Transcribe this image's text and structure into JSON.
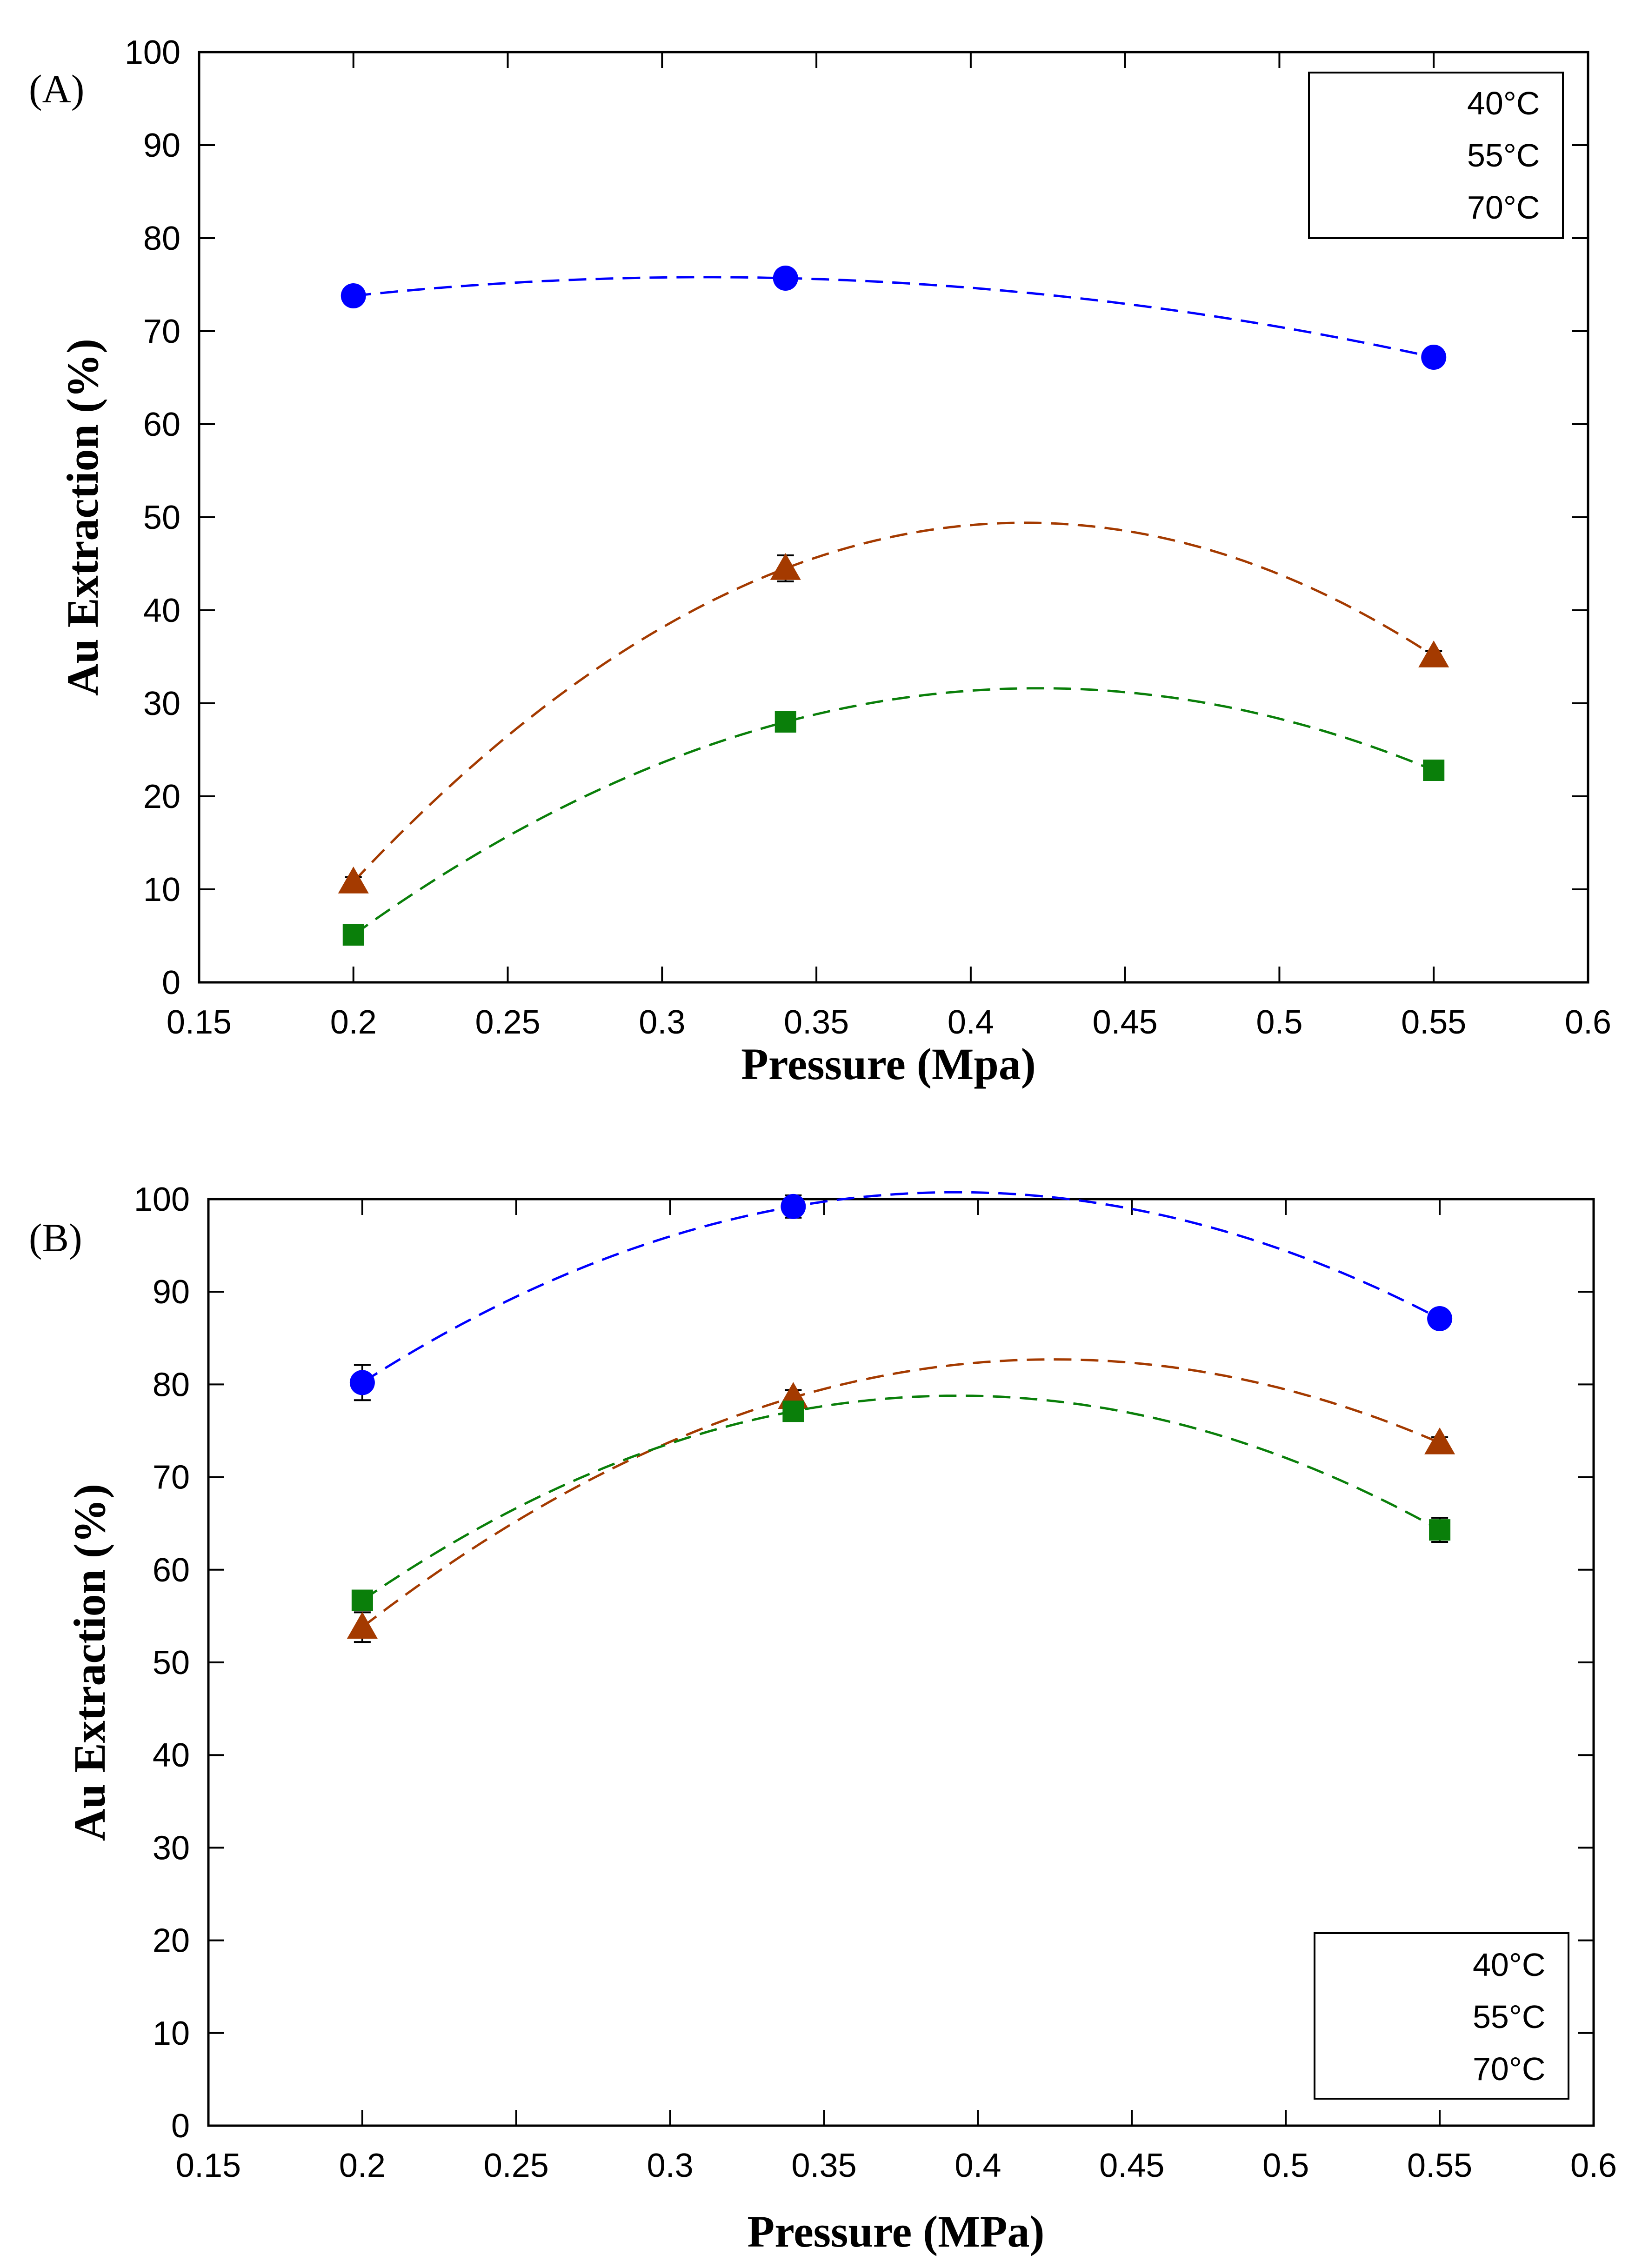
{
  "chart_data": [
    {
      "type": "scatter",
      "panel_label": "(A)",
      "xlabel": "Pressure (Mpa)",
      "ylabel": "Au Extraction (%)",
      "xlim": [
        0.15,
        0.6
      ],
      "ylim": [
        0,
        100
      ],
      "xticks": [
        "0.15",
        "0.2",
        "0.25",
        "0.3",
        "0.35",
        "0.4",
        "0.45",
        "0.5",
        "0.55",
        "0.6"
      ],
      "yticks": [
        "0",
        "10",
        "20",
        "30",
        "40",
        "50",
        "60",
        "70",
        "80",
        "90",
        "100"
      ],
      "x": [
        0.2,
        0.34,
        0.55
      ],
      "grid": false,
      "legend_position": "top-right",
      "fit_lines": "dashed",
      "series": [
        {
          "name": "40°C",
          "marker": "circle",
          "color": "#0000ff",
          "values": [
            73.8,
            75.7,
            67.2
          ],
          "errors": [
            0.6,
            0.9,
            0.6
          ]
        },
        {
          "name": "55°C",
          "marker": "triangle",
          "color": "#a43a00",
          "values": [
            10.8,
            44.5,
            35.1
          ],
          "errors": [
            0.5,
            1.4,
            0.5
          ]
        },
        {
          "name": "70°C",
          "marker": "square",
          "color": "#0a7f0a",
          "values": [
            5.1,
            28.0,
            22.8
          ],
          "errors": [
            0.3,
            0.5,
            0.4
          ]
        }
      ]
    },
    {
      "type": "scatter",
      "panel_label": "(B)",
      "xlabel": "Pressure (MPa)",
      "ylabel": "Au Extraction (%)",
      "xlim": [
        0.15,
        0.6
      ],
      "ylim": [
        0,
        100
      ],
      "xticks": [
        "0.15",
        "0.2",
        "0.25",
        "0.3",
        "0.35",
        "0.4",
        "0.45",
        "0.5",
        "0.55",
        "0.6"
      ],
      "yticks": [
        "0",
        "10",
        "20",
        "30",
        "40",
        "50",
        "60",
        "70",
        "80",
        "90",
        "100"
      ],
      "x": [
        0.2,
        0.34,
        0.55
      ],
      "grid": false,
      "legend_position": "bottom-right",
      "fit_lines": "dashed",
      "series": [
        {
          "name": "40°C",
          "marker": "circle",
          "color": "#0000ff",
          "values": [
            80.2,
            99.2,
            87.1
          ],
          "errors": [
            1.9,
            1.2,
            0.6
          ]
        },
        {
          "name": "55°C",
          "marker": "triangle",
          "color": "#a43a00",
          "values": [
            53.8,
            78.6,
            73.7
          ],
          "errors": [
            1.6,
            0.8,
            0.6
          ]
        },
        {
          "name": "70°C",
          "marker": "square",
          "color": "#0a7f0a",
          "values": [
            56.7,
            77.1,
            64.3
          ],
          "errors": [
            0.6,
            0.7,
            1.3
          ]
        }
      ]
    }
  ]
}
